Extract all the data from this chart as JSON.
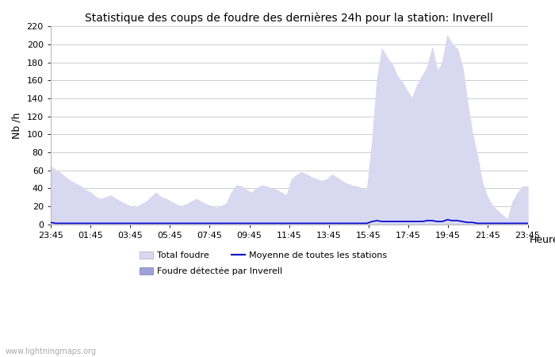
{
  "title": "Statistique des coups de foudre des dernières 24h pour la station: Inverell",
  "xlabel": "Heure",
  "ylabel": "Nb /h",
  "watermark": "www.lightningmaps.org",
  "ylim": [
    0,
    220
  ],
  "yticks": [
    0,
    20,
    40,
    60,
    80,
    100,
    120,
    140,
    160,
    180,
    200,
    220
  ],
  "xtick_labels": [
    "23:45",
    "01:45",
    "03:45",
    "05:45",
    "07:45",
    "09:45",
    "11:45",
    "13:45",
    "15:45",
    "17:45",
    "19:45",
    "21:45",
    "23:45"
  ],
  "plot_bg_color": "#ffffff",
  "area_color": "#d8d8f0",
  "mean_line_color": "#0000cc",
  "legend_total_color": "#d8d8f0",
  "legend_inverell_color": "#a0a0d8",
  "total_foudre": [
    65,
    60,
    57,
    52,
    48,
    45,
    42,
    38,
    35,
    30,
    28,
    30,
    32,
    28,
    25,
    22,
    20,
    18,
    22,
    25,
    30,
    35,
    30,
    28,
    25,
    22,
    20,
    22,
    25,
    28,
    25,
    22,
    20,
    18,
    20,
    23,
    35,
    43,
    42,
    38,
    35,
    40,
    43,
    42,
    40,
    38,
    35,
    32,
    50,
    55,
    58,
    55,
    52,
    50,
    48,
    50,
    55,
    52,
    48,
    45,
    43,
    42,
    40,
    38,
    90,
    160,
    195,
    185,
    178,
    165,
    158,
    148,
    140,
    155,
    165,
    175,
    196,
    170,
    180,
    210,
    200,
    195,
    175,
    135,
    100,
    75,
    45,
    30,
    20,
    15,
    10,
    5,
    25,
    35,
    42,
    42
  ],
  "mean_line": [
    2,
    1,
    1,
    1,
    1,
    1,
    1,
    1,
    1,
    1,
    1,
    1,
    1,
    1,
    1,
    1,
    1,
    1,
    1,
    1,
    1,
    1,
    1,
    1,
    1,
    1,
    1,
    1,
    1,
    1,
    1,
    1,
    1,
    1,
    1,
    1,
    1,
    1,
    1,
    1,
    1,
    1,
    1,
    1,
    1,
    1,
    1,
    1,
    1,
    1,
    1,
    1,
    1,
    1,
    1,
    1,
    1,
    1,
    1,
    1,
    1,
    1,
    1,
    1,
    3,
    4,
    3,
    3,
    3,
    3,
    3,
    3,
    3,
    3,
    3,
    4,
    4,
    3,
    3,
    5,
    4,
    4,
    3,
    2,
    2,
    1,
    1,
    1,
    1,
    1,
    1,
    1,
    1,
    1,
    1,
    1
  ],
  "n_points": 96,
  "n_xticks": 13,
  "figsize": [
    7.0,
    4.5
  ],
  "dpi": 100,
  "title_fontsize": 10,
  "tick_fontsize": 8,
  "ylabel_fontsize": 9,
  "xlabel_fontsize": 9,
  "legend_fontsize": 8
}
